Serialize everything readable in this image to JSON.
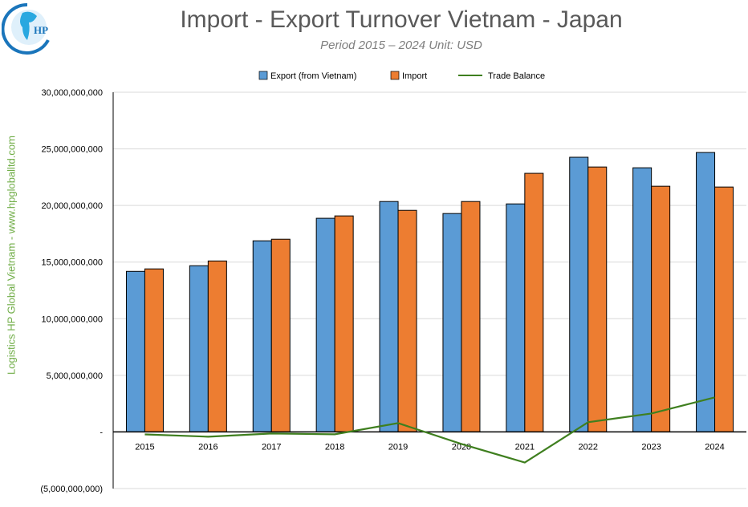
{
  "header": {
    "title": "Import - Export Turnover Vietnam - Japan",
    "subtitle": "Period 2015 – 2024  Unit: USD"
  },
  "watermark": "Logistics HP Global Vietnam - www.hpgloballtd.com",
  "logo": {
    "text": "HP"
  },
  "chart_data": {
    "type": "bar",
    "title": "Import - Export Turnover Vietnam - Japan",
    "subtitle": "Period 2015 – 2024  Unit: USD",
    "categories": [
      "2015",
      "2016",
      "2017",
      "2018",
      "2019",
      "2020",
      "2021",
      "2022",
      "2023",
      "2024"
    ],
    "series": [
      {
        "name": "Export (from Vietnam)",
        "type": "bar",
        "color": "#5b9bd5",
        "values": [
          14180000000,
          14680000000,
          16880000000,
          18870000000,
          20350000000,
          19290000000,
          20140000000,
          24260000000,
          23330000000,
          24680000000
        ]
      },
      {
        "name": "Import",
        "type": "bar",
        "color": "#ed7d31",
        "values": [
          14400000000,
          15100000000,
          17020000000,
          19080000000,
          19570000000,
          20350000000,
          22840000000,
          23400000000,
          21700000000,
          21630000000
        ]
      },
      {
        "name": "Trade Balance",
        "type": "line",
        "color": "#3f7f1f",
        "values": [
          -220000000,
          -420000000,
          -140000000,
          -210000000,
          780000000,
          -1060000000,
          -2700000000,
          860000000,
          1630000000,
          3050000000
        ]
      }
    ],
    "ylim": [
      -5000000000,
      30000000000
    ],
    "yticks": [
      "(5,000,000,000)",
      "-",
      "5,000,000,000",
      "10,000,000,000",
      "15,000,000,000",
      "20,000,000,000",
      "25,000,000,000",
      "30,000,000,000"
    ],
    "grid": true,
    "legend": "top"
  }
}
